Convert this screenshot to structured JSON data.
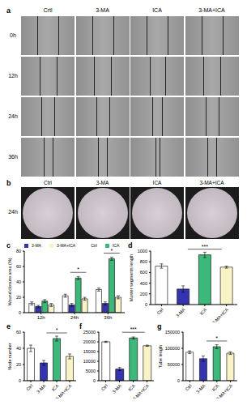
{
  "image_panels": [
    {
      "label": "a",
      "columns": [
        "Crtl",
        "3-MA",
        "ICA",
        "3-MA+ICA"
      ],
      "rows": [
        "0h",
        "12h",
        "24h",
        "36h"
      ]
    },
    {
      "label": "b",
      "columns": [
        "Ctrl",
        "3-MA",
        "ICA",
        "3-MA+ICA"
      ],
      "rows": [
        "24h"
      ]
    }
  ],
  "chart_data": [
    {
      "label": "c",
      "type": "bar",
      "categories": [
        "12h",
        "24h",
        "36h"
      ],
      "y_label": "Wound closure area (%)",
      "ylim": [
        0,
        80
      ],
      "yticks": [
        0,
        20,
        40,
        60,
        80
      ],
      "legend": "upper left",
      "series": [
        {
          "name": "Ctrl",
          "color": "#ffffff",
          "values": [
            12,
            22,
            30
          ],
          "errors": [
            2,
            2,
            2
          ]
        },
        {
          "name": "3-MA",
          "color": "#3434b0",
          "values": [
            8,
            10,
            12
          ],
          "errors": [
            1.5,
            2,
            2
          ]
        },
        {
          "name": "ICA",
          "color": "#3cb87a",
          "values": [
            15,
            45,
            70
          ],
          "errors": [
            2,
            2,
            2
          ]
        },
        {
          "name": "3-MA+ICA",
          "color": "#fbf3c8",
          "values": [
            10,
            18,
            20
          ],
          "errors": [
            2,
            2,
            2
          ]
        }
      ],
      "annotations": [
        {
          "text": "*",
          "category": "24h",
          "series": "ICA"
        },
        {
          "text": "*",
          "category": "36h",
          "series": "ICA"
        }
      ]
    },
    {
      "label": "d",
      "type": "bar",
      "categories": [
        "Ctrl",
        "3-MA",
        "ICA",
        "3-MA+ICA"
      ],
      "y_label": "Master segments length",
      "ylim": [
        0,
        1000
      ],
      "yticks": [
        0,
        200,
        400,
        600,
        800,
        1000
      ],
      "values": [
        720,
        290,
        930,
        700
      ],
      "errors": [
        40,
        60,
        50,
        20
      ],
      "colors": [
        "#ffffff",
        "#3434b0",
        "#3cb87a",
        "#fbf3c8"
      ],
      "annotations": [
        {
          "text": "***",
          "category": "ICA"
        }
      ]
    },
    {
      "label": "e",
      "type": "bar",
      "categories": [
        "Ctrl",
        "3-MA",
        "ICA",
        "3-MA+ICA"
      ],
      "y_label": "Node number",
      "ylim": [
        0,
        60
      ],
      "yticks": [
        0,
        20,
        40,
        60
      ],
      "values": [
        40,
        22,
        52,
        30
      ],
      "errors": [
        4,
        3,
        3,
        3
      ],
      "colors": [
        "#ffffff",
        "#3434b0",
        "#3cb87a",
        "#fbf3c8"
      ],
      "annotations": [
        {
          "text": "*",
          "category": "ICA"
        }
      ]
    },
    {
      "label": "f",
      "type": "bar",
      "categories": [
        "Ctrl",
        "3-MA",
        "ICA",
        "3-MA+ICA"
      ],
      "ylim": [
        0,
        25000
      ],
      "yticks": [
        0,
        5000,
        10000,
        15000,
        20000,
        25000
      ],
      "values": [
        20000,
        6000,
        22000,
        18000
      ],
      "errors": [
        300,
        800,
        500,
        300
      ],
      "colors": [
        "#ffffff",
        "#3434b0",
        "#3cb87a",
        "#fbf3c8"
      ],
      "annotations": [
        {
          "text": "***",
          "category": "ICA"
        }
      ]
    },
    {
      "label": "g",
      "type": "bar",
      "categories": [
        "Ctrl",
        "3-MA",
        "ICA",
        "3-MA+ICA"
      ],
      "y_label": "Tube length",
      "ylim": [
        0,
        150000
      ],
      "yticks": [
        0,
        50000,
        100000,
        150000
      ],
      "values": [
        88000,
        68000,
        105000,
        85000
      ],
      "errors": [
        4000,
        8000,
        6000,
        4000
      ],
      "colors": [
        "#ffffff",
        "#3434b0",
        "#3cb87a",
        "#fbf3c8"
      ],
      "annotations": [
        {
          "text": "*",
          "category": "ICA"
        }
      ]
    }
  ]
}
